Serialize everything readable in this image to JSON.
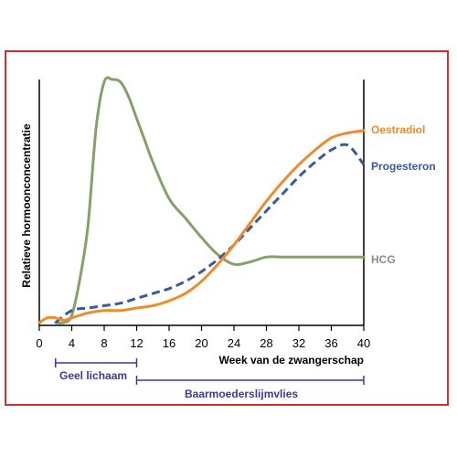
{
  "chart_data": {
    "type": "line",
    "xlabel": "Week van de zwangerschap",
    "ylabel": "Relatieve hormoonconcentratie",
    "xlim": [
      0,
      40
    ],
    "x_ticks": [
      "0",
      "4",
      "8",
      "12",
      "16",
      "20",
      "24",
      "28",
      "32",
      "36",
      "40"
    ],
    "series": [
      {
        "name": "Oestradiol",
        "color": "#ef8b2c",
        "style": "solid",
        "x": [
          0,
          1,
          2,
          3,
          4,
          5,
          6,
          8,
          10,
          12,
          14,
          16,
          18,
          20,
          22,
          24,
          26,
          28,
          30,
          32,
          34,
          36,
          38,
          40
        ],
        "y": [
          0.0,
          0.02,
          0.02,
          0.01,
          0.02,
          0.03,
          0.04,
          0.05,
          0.05,
          0.06,
          0.07,
          0.09,
          0.12,
          0.17,
          0.24,
          0.32,
          0.41,
          0.5,
          0.58,
          0.65,
          0.71,
          0.76,
          0.78,
          0.79
        ]
      },
      {
        "name": "Progesteron",
        "color": "#3a5a9a",
        "style": "dashed",
        "x": [
          2,
          4,
          6,
          8,
          10,
          12,
          14,
          16,
          18,
          20,
          22,
          24,
          26,
          28,
          30,
          32,
          34,
          36,
          38,
          40
        ],
        "y": [
          0.0,
          0.05,
          0.06,
          0.07,
          0.08,
          0.1,
          0.12,
          0.14,
          0.17,
          0.21,
          0.26,
          0.32,
          0.39,
          0.46,
          0.53,
          0.6,
          0.66,
          0.71,
          0.73,
          0.65
        ]
      },
      {
        "name": "HCG",
        "color": "#86a06a",
        "style": "solid",
        "x": [
          2,
          3,
          4,
          5,
          6,
          7,
          8,
          9,
          10,
          11,
          12,
          13,
          14,
          16,
          18,
          20,
          22,
          24,
          26,
          28,
          30,
          32,
          34,
          36,
          38,
          40
        ],
        "y": [
          0.0,
          0.0,
          0.03,
          0.18,
          0.4,
          0.8,
          0.99,
          1.0,
          0.99,
          0.93,
          0.84,
          0.75,
          0.66,
          0.51,
          0.43,
          0.35,
          0.28,
          0.24,
          0.25,
          0.27,
          0.27,
          0.27,
          0.27,
          0.27,
          0.27,
          0.27
        ]
      }
    ],
    "annotations": [
      {
        "label": "Geel lichaam",
        "x_range": [
          2,
          12
        ],
        "color": "#3a3a9a"
      },
      {
        "label": "Baarmoederslijmvlies",
        "x_range": [
          12,
          40
        ],
        "color": "#3a3a9a"
      }
    ],
    "grid": false,
    "legend": "right, next to line ends"
  }
}
